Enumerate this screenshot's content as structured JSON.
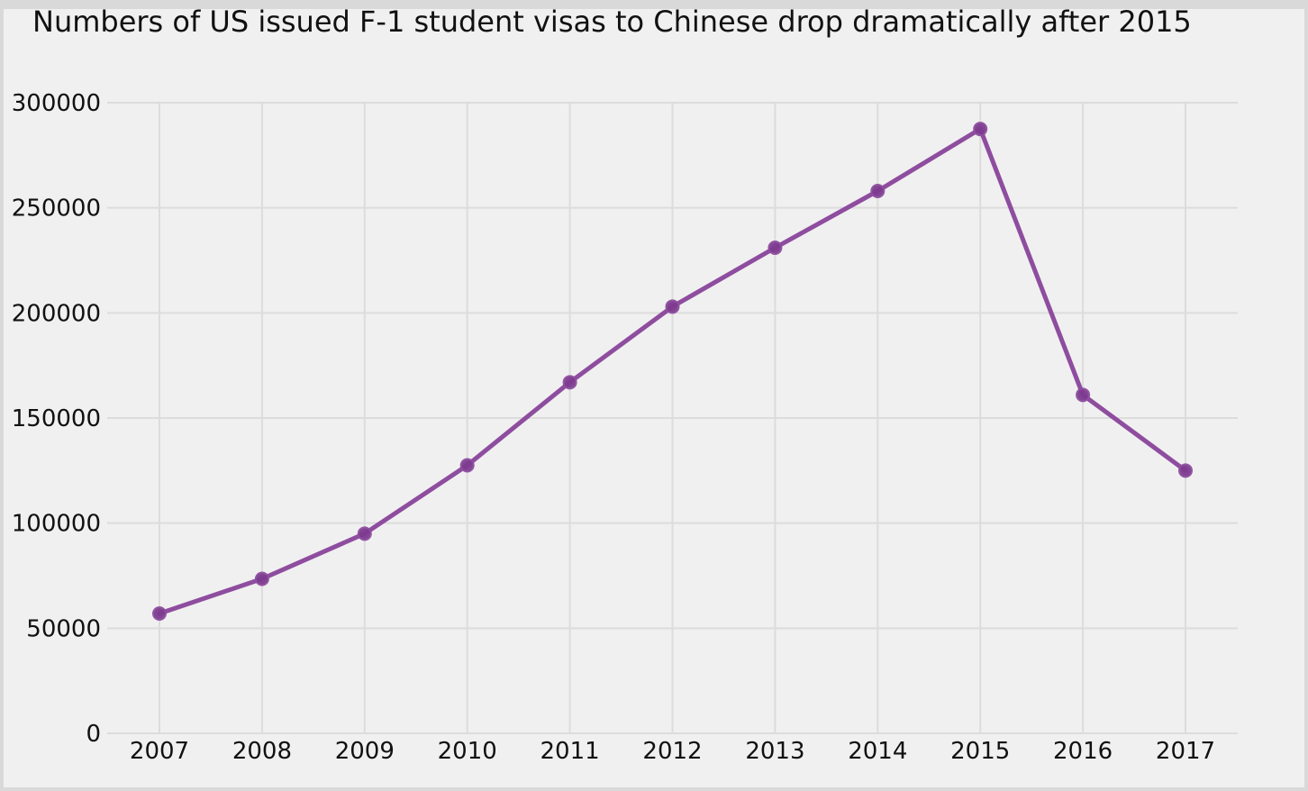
{
  "chart_data": {
    "type": "line",
    "title": "Numbers of US issued F-1 student visas to Chinese drop dramatically after 2015",
    "xlabel": "",
    "ylabel": "",
    "x": [
      "2007",
      "2008",
      "2009",
      "2010",
      "2011",
      "2012",
      "2013",
      "2014",
      "2015",
      "2016",
      "2017"
    ],
    "series": [
      {
        "values": [
          57000,
          73500,
          95000,
          127500,
          167000,
          203000,
          231000,
          258000,
          287500,
          161000,
          125000
        ],
        "color": "#8e4d9f"
      }
    ],
    "y_ticks": [
      "0",
      "50000",
      "100000",
      "150000",
      "200000",
      "250000",
      "300000"
    ],
    "ylim": [
      0,
      300000
    ],
    "grid": true,
    "background": "#f0f0f0"
  }
}
